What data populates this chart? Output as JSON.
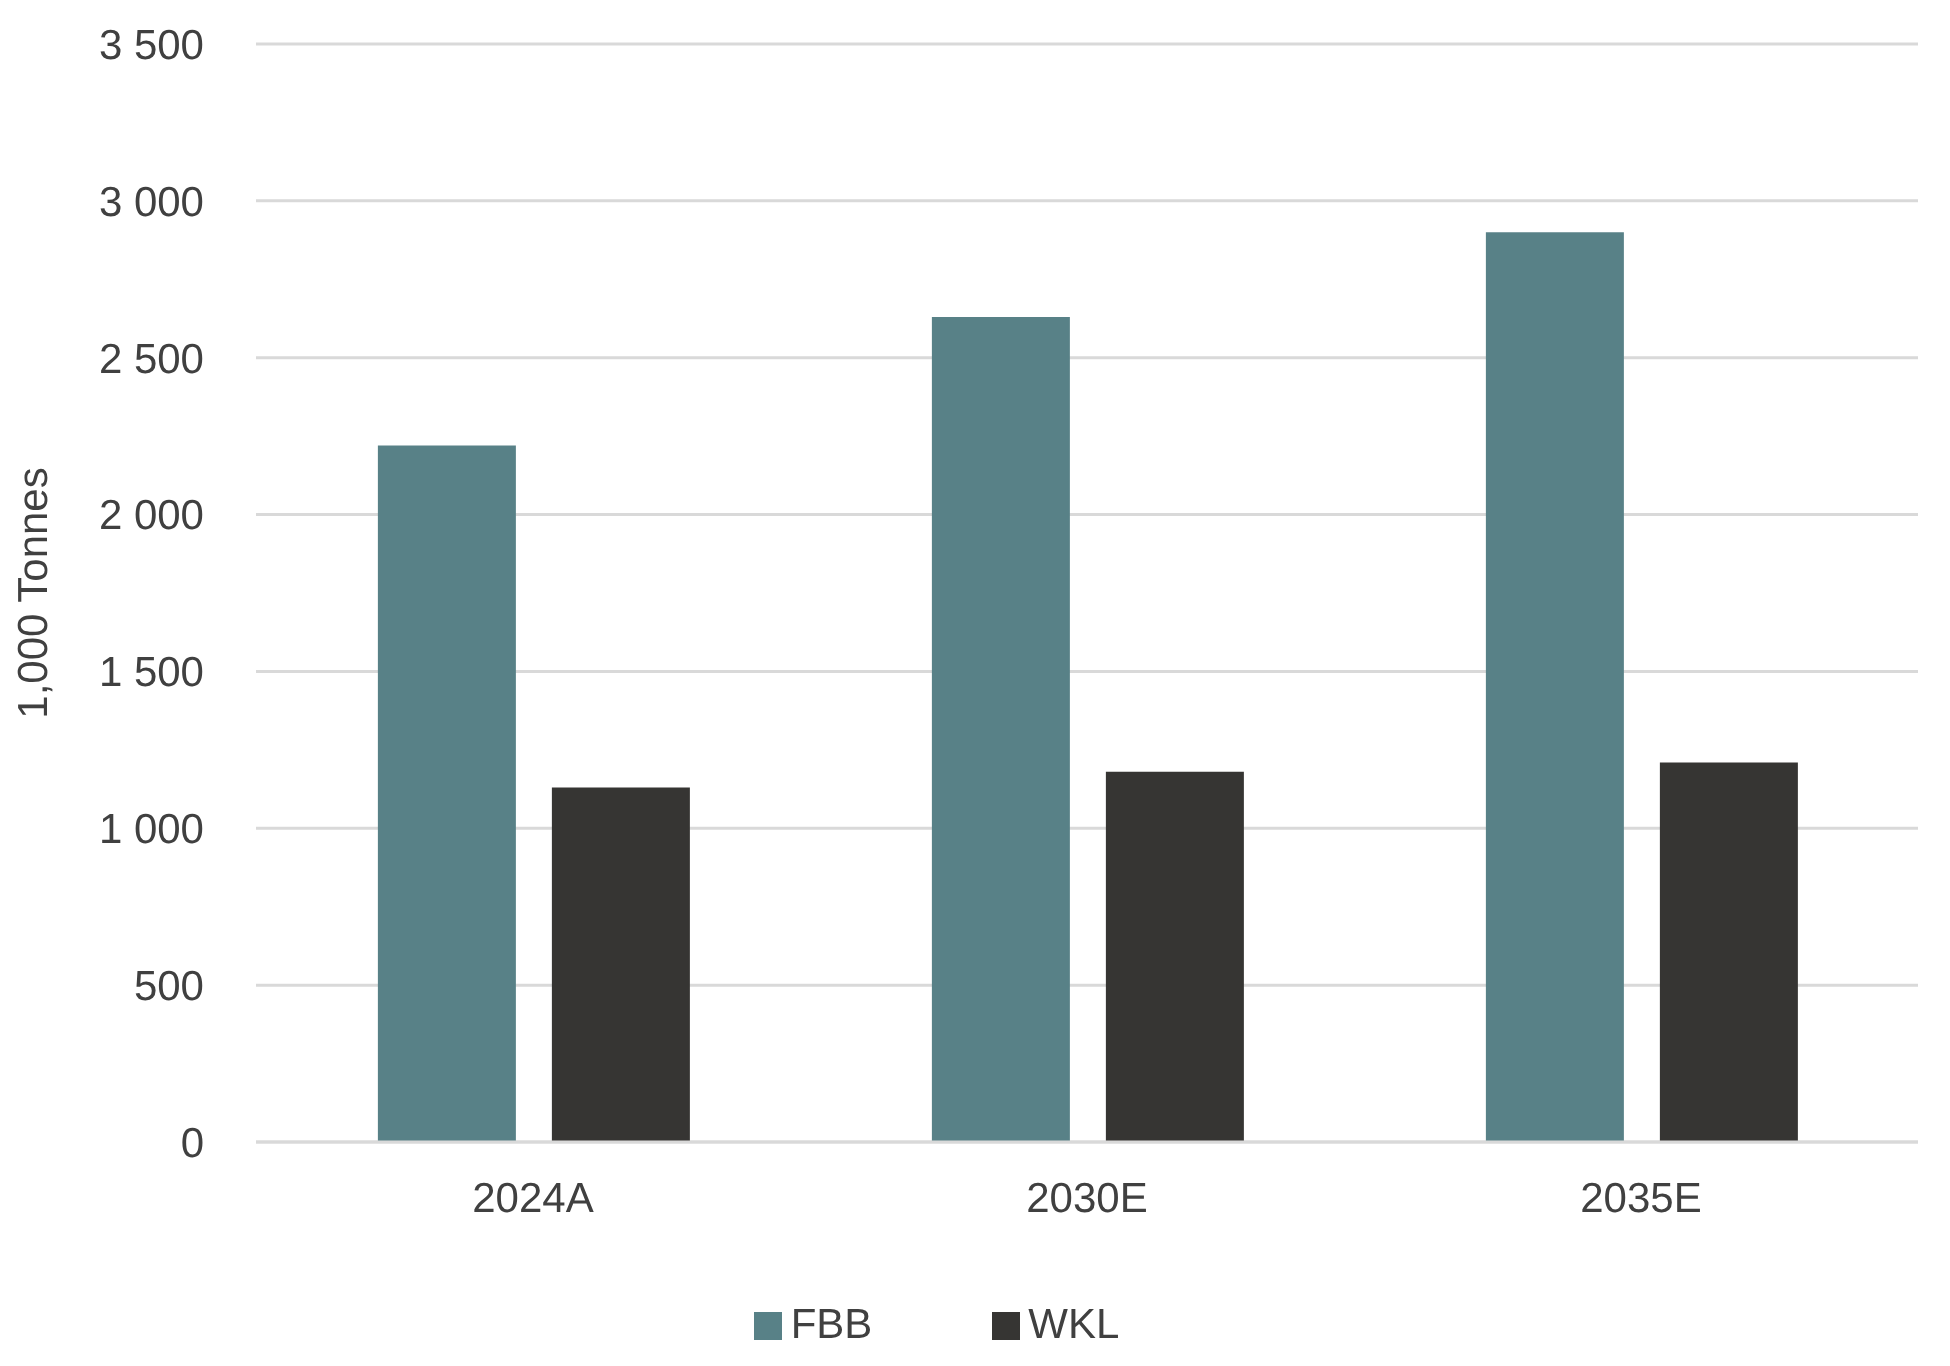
{
  "chart_data": {
    "type": "bar",
    "ylabel": "1,000 Tonnes",
    "categories": [
      "2024A",
      "2030E",
      "2035E"
    ],
    "series": [
      {
        "name": "FBB",
        "color": "#588187",
        "values": [
          2220,
          2630,
          2900
        ]
      },
      {
        "name": "WKL",
        "color": "#363533",
        "values": [
          1130,
          1180,
          1210
        ]
      }
    ],
    "ylim": [
      0,
      3500
    ],
    "yticks": [
      {
        "value": 0,
        "label": "0"
      },
      {
        "value": 500,
        "label": "500"
      },
      {
        "value": 1000,
        "label": "1 000"
      },
      {
        "value": 1500,
        "label": "1 500"
      },
      {
        "value": 2000,
        "label": "2 000"
      },
      {
        "value": 2500,
        "label": "2 500"
      },
      {
        "value": 3000,
        "label": "3 000"
      },
      {
        "value": 3500,
        "label": "3 500"
      }
    ],
    "grid": "y",
    "legend": "bottom"
  }
}
